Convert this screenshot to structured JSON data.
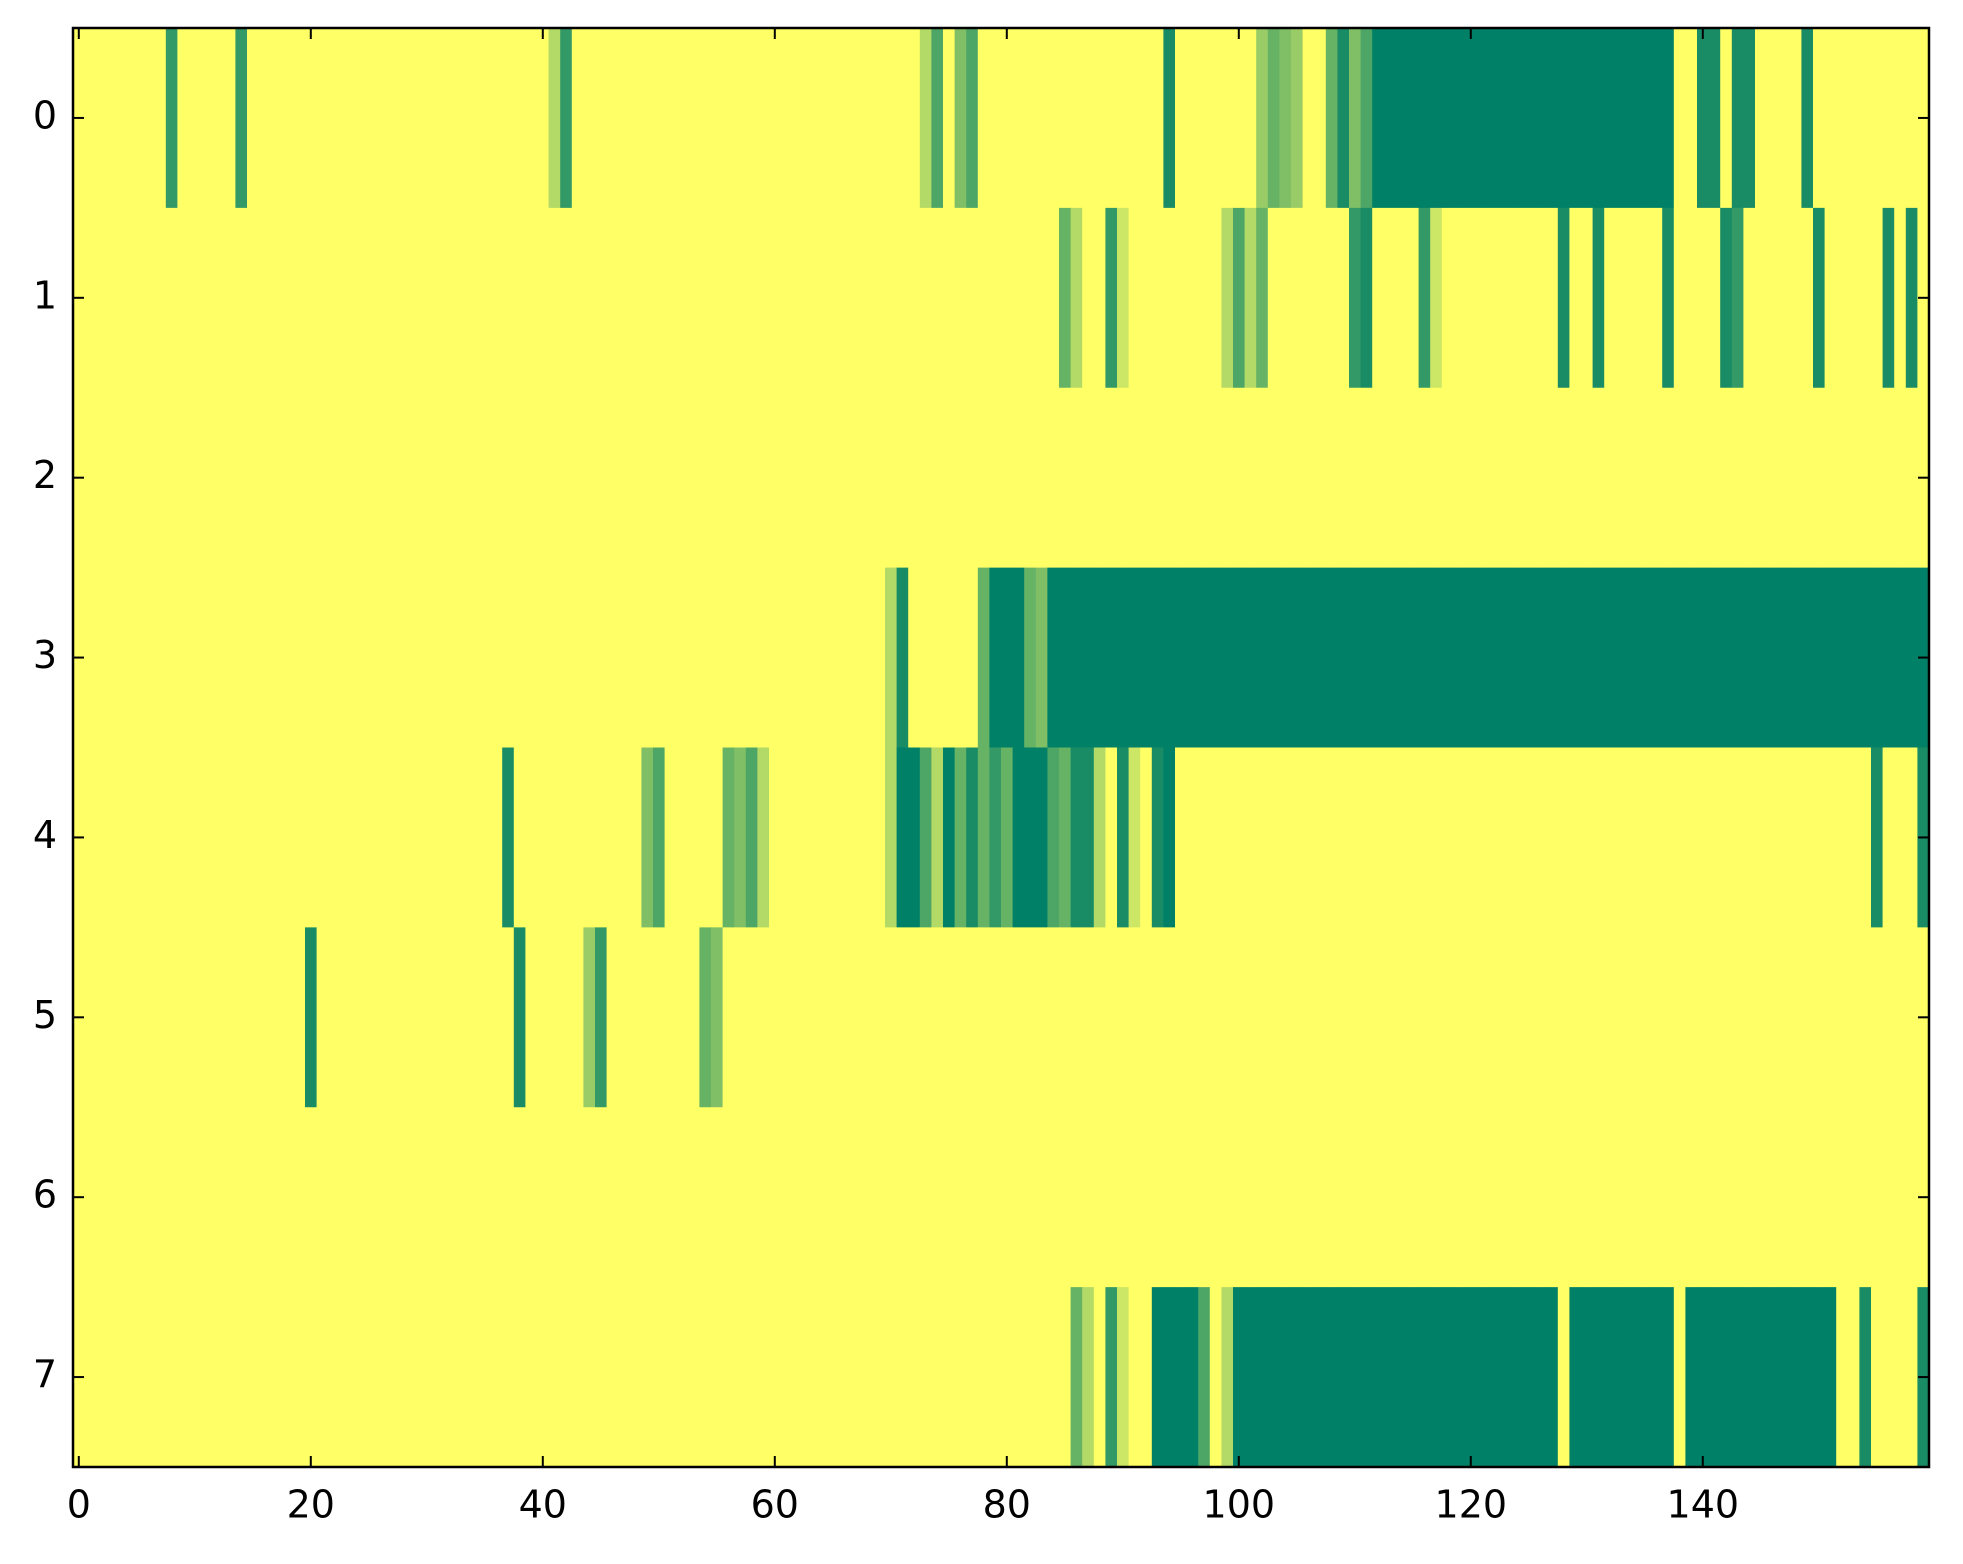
{
  "chart_data": {
    "type": "heatmap",
    "colormap": "summer_r",
    "xlim": [
      -0.5,
      159.5
    ],
    "ylim": [
      7.5,
      -0.5
    ],
    "xticks": [
      0,
      20,
      40,
      60,
      80,
      100,
      120,
      140
    ],
    "yticks": [
      0,
      1,
      2,
      3,
      4,
      5,
      6,
      7
    ],
    "values": [
      [
        0,
        0,
        0,
        0,
        0,
        0,
        0,
        0,
        0.8,
        0,
        0,
        0,
        0,
        0,
        0.8,
        0,
        0,
        0,
        0,
        0,
        0,
        0,
        0,
        0,
        0,
        0,
        0,
        0,
        0,
        0,
        0,
        0,
        0,
        0,
        0,
        0,
        0,
        0,
        0,
        0,
        0,
        0.3,
        0.8,
        0,
        0,
        0,
        0,
        0,
        0,
        0,
        0,
        0,
        0,
        0,
        0,
        0,
        0,
        0,
        0,
        0,
        0,
        0,
        0,
        0,
        0,
        0,
        0,
        0,
        0,
        0,
        0,
        0,
        0,
        0.3,
        0.7,
        0,
        0.5,
        0.7,
        0,
        0,
        0,
        0,
        0,
        0,
        0,
        0,
        0,
        0,
        0,
        0,
        0,
        0,
        0,
        0,
        0.9,
        0,
        0,
        0,
        0,
        0,
        0,
        0,
        0.4,
        0.6,
        0.5,
        0.4,
        0,
        0,
        0.6,
        0.9,
        0.5,
        0.7,
        1,
        1,
        1,
        1,
        1,
        1,
        1,
        1,
        1,
        1,
        1,
        1,
        1,
        1,
        1,
        1,
        1,
        1,
        1,
        1,
        1,
        1,
        1,
        1,
        1,
        1,
        0,
        0,
        0.9,
        0.9,
        0,
        0.9,
        0.9,
        0,
        0,
        0,
        0,
        0.9,
        0,
        0,
        0,
        0,
        0,
        0,
        0,
        0,
        0,
        0
      ],
      [
        0,
        0,
        0,
        0,
        0,
        0,
        0,
        0,
        0,
        0,
        0,
        0,
        0,
        0,
        0,
        0,
        0,
        0,
        0,
        0,
        0,
        0,
        0,
        0,
        0,
        0,
        0,
        0,
        0,
        0,
        0,
        0,
        0,
        0,
        0,
        0,
        0,
        0,
        0,
        0,
        0,
        0,
        0,
        0,
        0,
        0,
        0,
        0,
        0,
        0,
        0,
        0,
        0,
        0,
        0,
        0,
        0,
        0,
        0,
        0,
        0,
        0,
        0,
        0,
        0,
        0,
        0,
        0,
        0,
        0,
        0,
        0,
        0,
        0,
        0,
        0,
        0,
        0,
        0,
        0,
        0,
        0,
        0,
        0,
        0,
        0.6,
        0.3,
        0,
        0,
        0.8,
        0.2,
        0,
        0,
        0,
        0,
        0,
        0,
        0,
        0,
        0.3,
        0.7,
        0.3,
        0.6,
        0,
        0,
        0,
        0,
        0,
        0,
        0,
        0.8,
        0.9,
        0,
        0,
        0,
        0,
        0.8,
        0.2,
        0,
        0,
        0,
        0,
        0,
        0,
        0,
        0,
        0,
        0,
        0.9,
        0,
        0,
        0.9,
        0,
        0,
        0,
        0,
        0,
        0.9,
        0,
        0,
        0,
        0,
        0.9,
        0.8,
        0,
        0,
        0,
        0,
        0,
        0,
        0.9,
        0,
        0,
        0,
        0,
        0,
        0.9,
        0,
        0.9,
        0
      ],
      [
        0,
        0,
        0,
        0,
        0,
        0,
        0,
        0,
        0,
        0,
        0,
        0,
        0,
        0,
        0,
        0,
        0,
        0,
        0,
        0,
        0,
        0,
        0,
        0,
        0,
        0,
        0,
        0,
        0,
        0,
        0,
        0,
        0,
        0,
        0,
        0,
        0,
        0,
        0,
        0,
        0,
        0,
        0,
        0,
        0,
        0,
        0,
        0,
        0,
        0,
        0,
        0,
        0,
        0,
        0,
        0,
        0,
        0,
        0,
        0,
        0,
        0,
        0,
        0,
        0,
        0,
        0,
        0,
        0,
        0,
        0,
        0,
        0,
        0,
        0,
        0,
        0,
        0,
        0,
        0,
        0,
        0,
        0,
        0,
        0,
        0,
        0,
        0,
        0,
        0,
        0,
        0,
        0,
        0,
        0,
        0,
        0,
        0,
        0,
        0,
        0,
        0,
        0,
        0,
        0,
        0,
        0,
        0,
        0,
        0,
        0,
        0,
        0,
        0,
        0,
        0,
        0,
        0,
        0,
        0,
        0,
        0,
        0,
        0,
        0,
        0,
        0,
        0,
        0,
        0,
        0,
        0,
        0,
        0,
        0,
        0,
        0,
        0,
        0,
        0,
        0,
        0,
        0,
        0,
        0,
        0,
        0,
        0,
        0,
        0,
        0,
        0,
        0,
        0,
        0,
        0,
        0,
        0,
        0,
        0
      ],
      [
        0,
        0,
        0,
        0,
        0,
        0,
        0,
        0,
        0,
        0,
        0,
        0,
        0,
        0,
        0,
        0,
        0,
        0,
        0,
        0,
        0,
        0,
        0,
        0,
        0,
        0,
        0,
        0,
        0,
        0,
        0,
        0,
        0,
        0,
        0,
        0,
        0,
        0,
        0,
        0,
        0,
        0,
        0,
        0,
        0,
        0,
        0,
        0,
        0,
        0,
        0,
        0,
        0,
        0,
        0,
        0,
        0,
        0,
        0,
        0,
        0,
        0,
        0,
        0,
        0,
        0,
        0,
        0,
        0,
        0,
        0.3,
        0.9,
        0,
        0,
        0,
        0,
        0,
        0,
        0.6,
        1,
        1,
        1,
        0.6,
        0.5,
        1,
        1,
        1,
        1,
        1,
        1,
        1,
        1,
        1,
        1,
        1,
        1,
        1,
        1,
        1,
        1,
        1,
        1,
        1,
        1,
        1,
        1,
        1,
        1,
        1,
        1,
        1,
        1,
        1,
        1,
        1,
        1,
        1,
        1,
        1,
        1,
        1,
        1,
        1,
        1,
        1,
        1,
        1,
        1,
        1,
        1,
        1,
        1,
        1,
        1,
        1,
        1,
        1,
        1,
        1,
        1,
        1,
        1,
        1,
        1,
        1,
        1,
        1,
        1,
        1,
        1,
        1,
        1,
        1,
        1,
        1,
        1,
        1,
        1,
        1,
        1
      ],
      [
        0,
        0,
        0,
        0,
        0,
        0,
        0,
        0,
        0,
        0,
        0,
        0,
        0,
        0,
        0,
        0,
        0,
        0,
        0,
        0,
        0,
        0,
        0,
        0,
        0,
        0,
        0,
        0,
        0,
        0,
        0,
        0,
        0,
        0,
        0,
        0,
        0,
        0.9,
        0,
        0,
        0,
        0,
        0,
        0,
        0,
        0,
        0,
        0,
        0,
        0.5,
        0.7,
        0,
        0,
        0,
        0,
        0,
        0.6,
        0.5,
        0.7,
        0.3,
        0,
        0,
        0,
        0,
        0,
        0,
        0,
        0,
        0,
        0,
        0.3,
        1,
        1,
        0.7,
        0.3,
        1,
        0.6,
        0.9,
        0.6,
        0.8,
        0.6,
        1,
        1,
        1,
        0.7,
        0.6,
        0.9,
        0.9,
        0.3,
        0,
        0.9,
        0.2,
        0,
        0.9,
        1,
        0,
        0,
        0,
        0,
        0,
        0,
        0,
        0,
        0,
        0,
        0,
        0,
        0,
        0,
        0,
        0,
        0,
        0,
        0,
        0,
        0,
        0,
        0,
        0,
        0,
        0,
        0,
        0,
        0,
        0,
        0,
        0,
        0,
        0,
        0,
        0,
        0,
        0,
        0,
        0,
        0,
        0,
        0,
        0,
        0,
        0,
        0,
        0,
        0,
        0,
        0,
        0,
        0,
        0,
        0,
        0,
        0,
        0,
        0,
        0,
        0.9,
        0,
        0,
        0,
        0.9
      ],
      [
        0,
        0,
        0,
        0,
        0,
        0,
        0,
        0,
        0,
        0,
        0,
        0,
        0,
        0,
        0,
        0,
        0,
        0,
        0,
        0,
        0.9,
        0,
        0,
        0,
        0,
        0,
        0,
        0,
        0,
        0,
        0,
        0,
        0,
        0,
        0,
        0,
        0,
        0,
        0.9,
        0,
        0,
        0,
        0,
        0,
        0.4,
        0.8,
        0,
        0,
        0,
        0,
        0,
        0,
        0,
        0,
        0.6,
        0.5,
        0,
        0,
        0,
        0,
        0,
        0,
        0,
        0,
        0,
        0,
        0,
        0,
        0,
        0,
        0,
        0,
        0,
        0,
        0,
        0,
        0,
        0,
        0,
        0,
        0,
        0,
        0,
        0,
        0,
        0,
        0,
        0,
        0,
        0,
        0,
        0,
        0,
        0,
        0,
        0,
        0,
        0,
        0,
        0,
        0,
        0,
        0,
        0,
        0,
        0,
        0,
        0,
        0,
        0,
        0,
        0,
        0,
        0,
        0,
        0,
        0,
        0,
        0,
        0,
        0,
        0,
        0,
        0,
        0,
        0,
        0,
        0,
        0,
        0,
        0,
        0,
        0,
        0,
        0,
        0,
        0,
        0,
        0,
        0,
        0,
        0,
        0,
        0,
        0,
        0,
        0,
        0,
        0,
        0,
        0,
        0,
        0,
        0,
        0,
        0,
        0,
        0,
        0,
        0
      ],
      [
        0,
        0,
        0,
        0,
        0,
        0,
        0,
        0,
        0,
        0,
        0,
        0,
        0,
        0,
        0,
        0,
        0,
        0,
        0,
        0,
        0,
        0,
        0,
        0,
        0,
        0,
        0,
        0,
        0,
        0,
        0,
        0,
        0,
        0,
        0,
        0,
        0,
        0,
        0,
        0,
        0,
        0,
        0,
        0,
        0,
        0,
        0,
        0,
        0,
        0,
        0,
        0,
        0,
        0,
        0,
        0,
        0,
        0,
        0,
        0,
        0,
        0,
        0,
        0,
        0,
        0,
        0,
        0,
        0,
        0,
        0,
        0,
        0,
        0,
        0,
        0,
        0,
        0,
        0,
        0,
        0,
        0,
        0,
        0,
        0,
        0,
        0,
        0,
        0,
        0,
        0,
        0,
        0,
        0,
        0,
        0,
        0,
        0,
        0,
        0,
        0,
        0,
        0,
        0,
        0,
        0,
        0,
        0,
        0,
        0,
        0,
        0,
        0,
        0,
        0,
        0,
        0,
        0,
        0,
        0,
        0,
        0,
        0,
        0,
        0,
        0,
        0,
        0,
        0,
        0,
        0,
        0,
        0,
        0,
        0,
        0,
        0,
        0,
        0,
        0,
        0,
        0,
        0,
        0,
        0,
        0,
        0,
        0,
        0,
        0,
        0,
        0,
        0,
        0,
        0,
        0,
        0,
        0,
        0,
        0
      ],
      [
        0,
        0,
        0,
        0,
        0,
        0,
        0,
        0,
        0,
        0,
        0,
        0,
        0,
        0,
        0,
        0,
        0,
        0,
        0,
        0,
        0,
        0,
        0,
        0,
        0,
        0,
        0,
        0,
        0,
        0,
        0,
        0,
        0,
        0,
        0,
        0,
        0,
        0,
        0,
        0,
        0,
        0,
        0,
        0,
        0,
        0,
        0,
        0,
        0,
        0,
        0,
        0,
        0,
        0,
        0,
        0,
        0,
        0,
        0,
        0,
        0,
        0,
        0,
        0,
        0,
        0,
        0,
        0,
        0,
        0,
        0,
        0,
        0,
        0,
        0,
        0,
        0,
        0,
        0,
        0,
        0,
        0,
        0,
        0,
        0,
        0,
        0.6,
        0.3,
        0,
        0.8,
        0.2,
        0,
        0,
        1,
        1,
        1,
        1,
        0.7,
        0,
        0.3,
        1,
        1,
        1,
        1,
        1,
        1,
        1,
        1,
        1,
        1,
        1,
        1,
        1,
        1,
        1,
        1,
        1,
        1,
        1,
        1,
        1,
        1,
        1,
        1,
        1,
        1,
        1,
        1,
        0,
        1,
        1,
        1,
        1,
        1,
        1,
        1,
        1,
        1,
        0,
        1,
        1,
        1,
        1,
        1,
        1,
        1,
        1,
        1,
        1,
        1,
        1,
        1,
        0,
        0,
        0.9,
        0,
        0,
        0,
        0,
        0.9
      ]
    ]
  }
}
